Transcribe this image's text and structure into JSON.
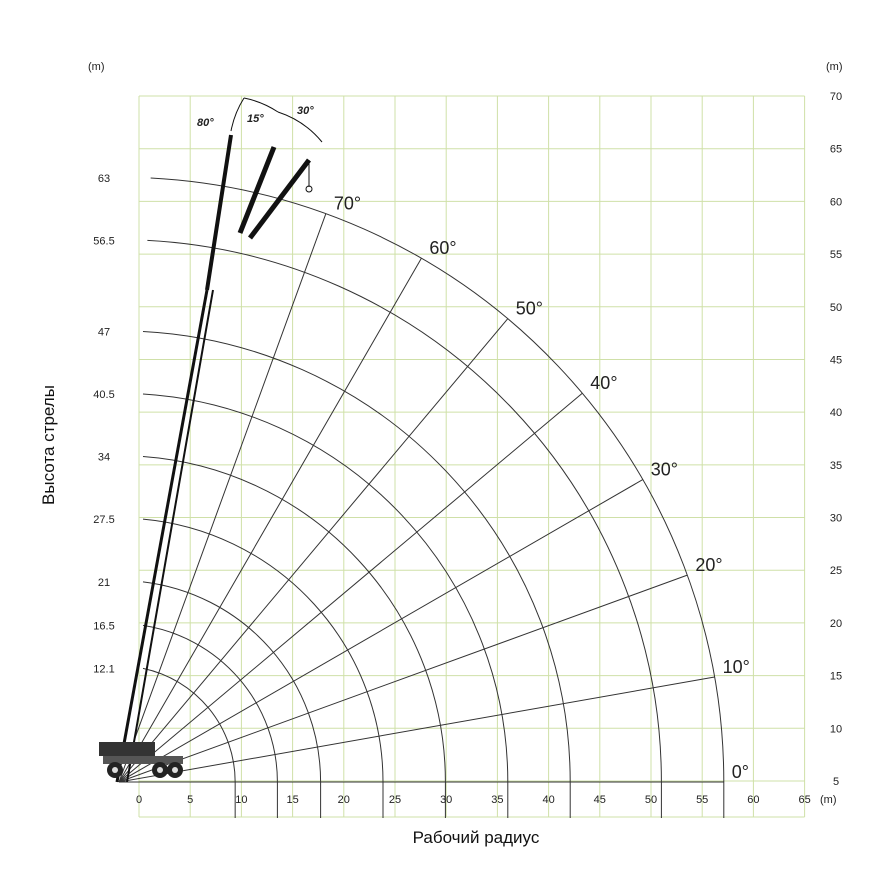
{
  "chart_data": {
    "type": "diagram",
    "ylabel": "Высота стрелы",
    "xlabel": "Рабочий радиус",
    "x_unit": "(m)",
    "left_unit": "(m)",
    "right_unit": "(m)",
    "x_ticks": [
      "0",
      "5",
      "10",
      "15",
      "20",
      "25",
      "30",
      "35",
      "40",
      "45",
      "50",
      "55",
      "60",
      "65"
    ],
    "right_ticks": [
      "5",
      "10",
      "15",
      "20",
      "25",
      "30",
      "35",
      "40",
      "45",
      "50",
      "55",
      "60",
      "65",
      "70"
    ],
    "boom_lengths": [
      "12.1",
      "16.5",
      "21",
      "27.5",
      "34",
      "40.5",
      "47",
      "56.5",
      "63"
    ],
    "boom_length_values": [
      12.1,
      16.5,
      21,
      27.5,
      34,
      40.5,
      47,
      56.5,
      63
    ],
    "boom_angles": [
      "0°",
      "10°",
      "20°",
      "30°",
      "40°",
      "50°",
      "60°",
      "70°"
    ],
    "boom_angle_values": [
      0,
      10,
      20,
      30,
      40,
      50,
      60,
      70
    ],
    "jib_angles": [
      "80°",
      "15°",
      "30°"
    ],
    "x_range": [
      0,
      65
    ],
    "y_range": [
      5,
      70
    ],
    "pivot_height": 5,
    "grid": true
  }
}
